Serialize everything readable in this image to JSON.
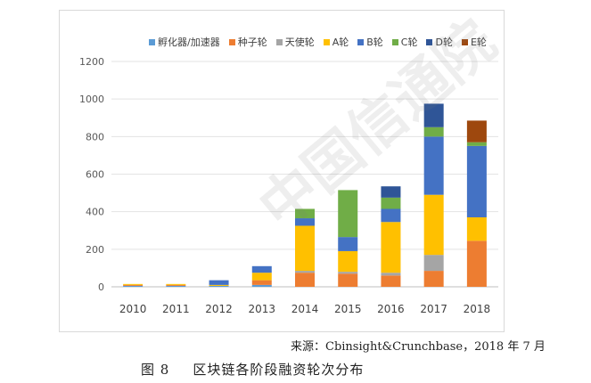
{
  "chart_data": {
    "type": "bar",
    "stacked": true,
    "title": "",
    "xlabel": "",
    "ylabel": "",
    "ylim": [
      0,
      1200
    ],
    "yticks": [
      0,
      200,
      400,
      600,
      800,
      1000,
      1200
    ],
    "grid": true,
    "legend_position": "top",
    "categories": [
      "2010",
      "2011",
      "2012",
      "2013",
      "2014",
      "2015",
      "2016",
      "2017",
      "2018"
    ],
    "series": [
      {
        "name": "孵化器/加速器",
        "color": "#5B9BD5",
        "values": [
          5,
          5,
          5,
          10,
          0,
          0,
          0,
          0,
          0
        ]
      },
      {
        "name": "种子轮",
        "color": "#ED7D31",
        "values": [
          5,
          5,
          0,
          25,
          75,
          70,
          60,
          85,
          245
        ]
      },
      {
        "name": "天使轮",
        "color": "#A5A5A5",
        "values": [
          0,
          0,
          0,
          0,
          10,
          10,
          15,
          85,
          0
        ]
      },
      {
        "name": "A轮",
        "color": "#FFC000",
        "values": [
          5,
          5,
          5,
          40,
          240,
          110,
          270,
          320,
          125
        ]
      },
      {
        "name": "B轮",
        "color": "#4472C4",
        "values": [
          0,
          0,
          25,
          35,
          40,
          75,
          70,
          310,
          380
        ]
      },
      {
        "name": "C轮",
        "color": "#70AD47",
        "values": [
          0,
          0,
          0,
          0,
          50,
          250,
          60,
          50,
          20
        ]
      },
      {
        "name": "D轮",
        "color": "#2F5597",
        "values": [
          0,
          0,
          0,
          0,
          0,
          0,
          60,
          125,
          0
        ]
      },
      {
        "name": "E轮",
        "color": "#9E480E",
        "values": [
          0,
          0,
          0,
          0,
          0,
          0,
          0,
          0,
          115
        ]
      }
    ]
  },
  "source_text": "来源：Cbinsight&Crunchbase，2018 年 7 月",
  "caption": {
    "figure_number": "图 8",
    "title": "区块链各阶段融资轮次分布"
  },
  "watermark_text": "中国信通院"
}
